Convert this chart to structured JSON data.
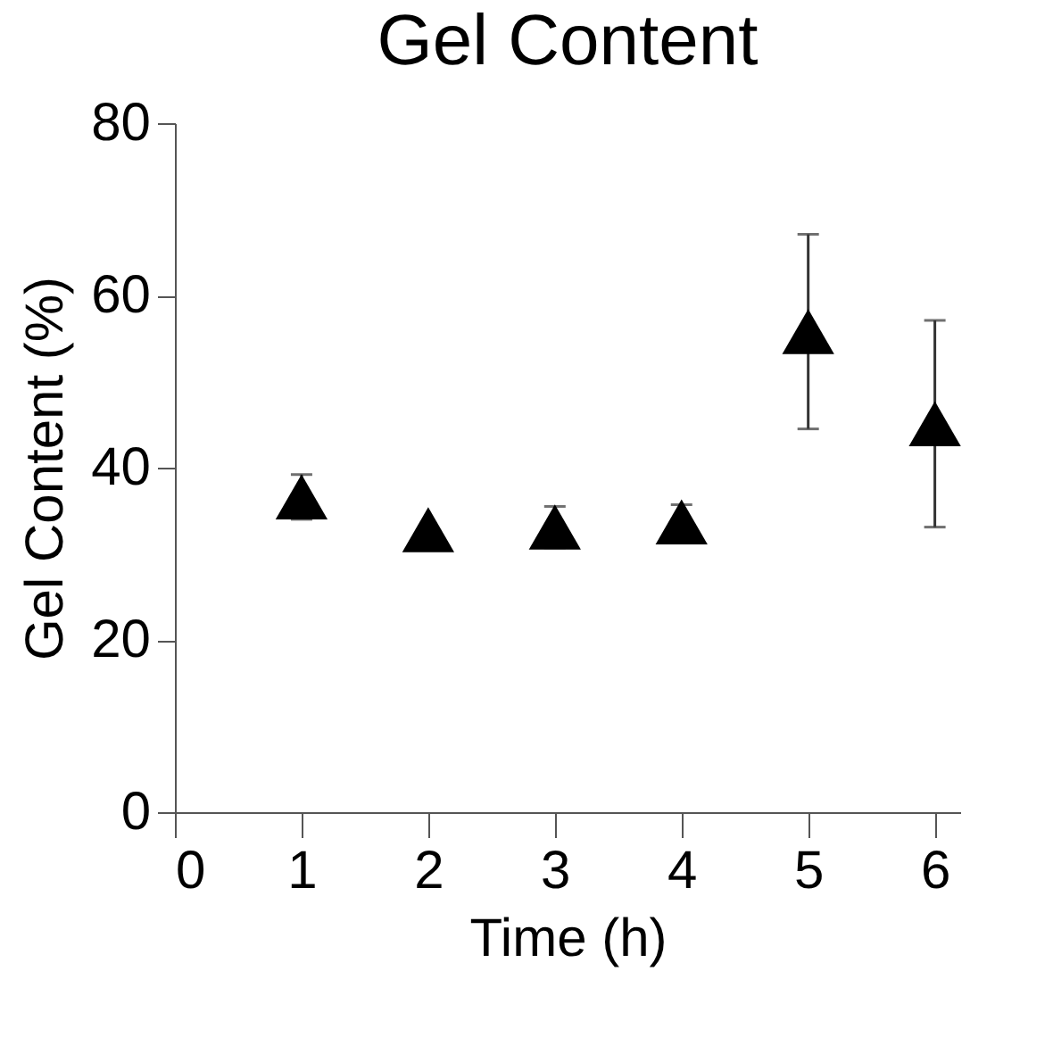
{
  "chart_data": {
    "type": "scatter",
    "title": "Gel Content",
    "xlabel": "Time (h)",
    "ylabel": "Gel Content (%)",
    "x": [
      1,
      2,
      3,
      4,
      5,
      6
    ],
    "series": [
      {
        "color": "#000000",
        "values": [
          36.6,
          32.8,
          33.1,
          33.7,
          55.8,
          45.1
        ],
        "errors": [
          2.6,
          null,
          2.4,
          2,
          11.3,
          12
        ]
      }
    ],
    "xlim": [
      0,
      6.2
    ],
    "xticks": [
      0,
      1,
      2,
      3,
      4,
      5,
      6
    ],
    "ylim": [
      0,
      80
    ],
    "yticks": [
      0,
      20,
      40,
      60,
      80
    ],
    "grid": false,
    "marker": "triangle"
  }
}
